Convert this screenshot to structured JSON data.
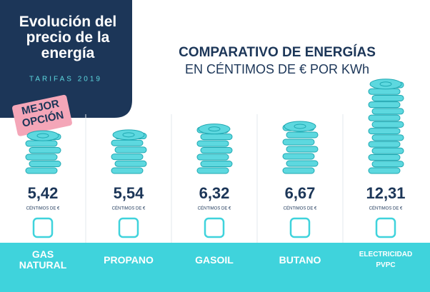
{
  "header": {
    "title": "Evolución del precio de la energía",
    "subtitle": "TARIFAS 2019"
  },
  "chart_data": {
    "type": "bar",
    "title": "COMPARATIVO DE ENERGÍAS",
    "subtitle": "EN CÉNTIMOS DE € POR KWh",
    "categories": [
      "GAS NATURAL",
      "PROPANO",
      "GASOIL",
      "BUTANO",
      "ELECTRICIDAD PVPC"
    ],
    "values": [
      5.42,
      5.54,
      6.32,
      6.67,
      12.31
    ],
    "value_labels": [
      "5,42",
      "5,54",
      "6,32",
      "6,67",
      "12,31"
    ],
    "unit_label": "CÉNTIMOS DE €",
    "annotations": [
      "MEJOR OPCIÓN"
    ],
    "color": "#5dd8df"
  }
}
